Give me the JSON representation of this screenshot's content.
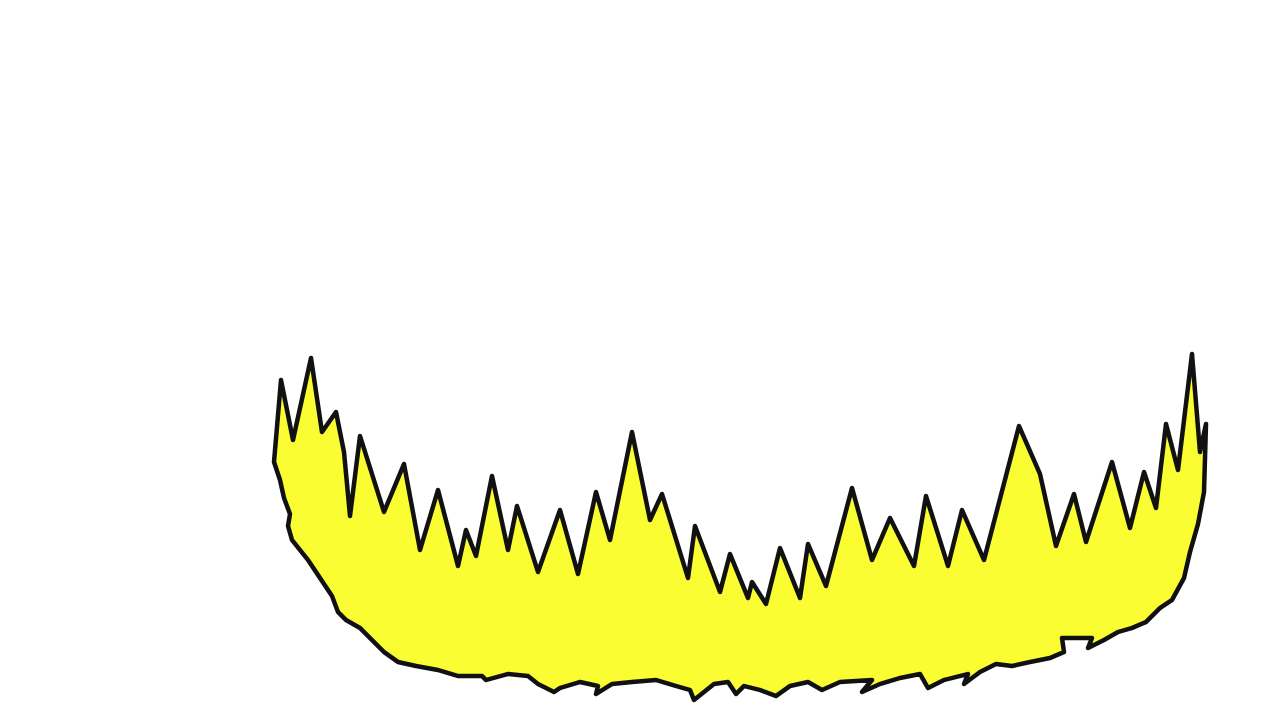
{
  "canvas": {
    "background_color": "#ffffff"
  },
  "shape": {
    "description_icon": "spiky-flame-crown-icon",
    "fill_color": "#fbfd33",
    "stroke_color": "#111111"
  }
}
